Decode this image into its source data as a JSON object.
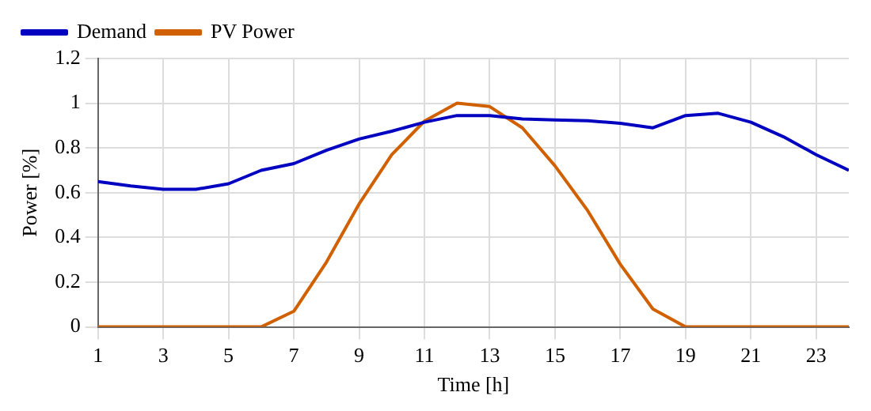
{
  "chart_data": {
    "type": "line",
    "xlabel": "Time [h]",
    "ylabel": "Power [%]",
    "x": [
      1,
      2,
      3,
      4,
      5,
      6,
      7,
      8,
      9,
      10,
      11,
      12,
      13,
      14,
      15,
      16,
      17,
      18,
      19,
      20,
      21,
      22,
      23,
      24
    ],
    "series": [
      {
        "name": "Demand",
        "color": "#0000c0",
        "values": [
          0.65,
          0.63,
          0.615,
          0.615,
          0.64,
          0.7,
          0.73,
          0.79,
          0.84,
          0.875,
          0.915,
          0.945,
          0.945,
          0.93,
          0.925,
          0.922,
          0.91,
          0.89,
          0.945,
          0.955,
          0.915,
          0.85,
          0.77,
          0.7
        ]
      },
      {
        "name": "PV Power",
        "color": "#d06000",
        "values": [
          0,
          0,
          0,
          0,
          0,
          0,
          0.07,
          0.29,
          0.55,
          0.77,
          0.92,
          1.0,
          0.985,
          0.89,
          0.72,
          0.52,
          0.28,
          0.08,
          0,
          0,
          0,
          0,
          0,
          0
        ]
      }
    ],
    "xlim": [
      1,
      24
    ],
    "xticks": [
      1,
      3,
      5,
      7,
      9,
      11,
      13,
      15,
      17,
      19,
      21,
      23
    ],
    "ylim": [
      0,
      1.2
    ],
    "yticks": [
      0,
      0.2,
      0.4,
      0.6,
      0.8,
      1,
      1.2
    ],
    "grid": true,
    "legend": "top left",
    "marker": "none",
    "line_style": "solid"
  }
}
